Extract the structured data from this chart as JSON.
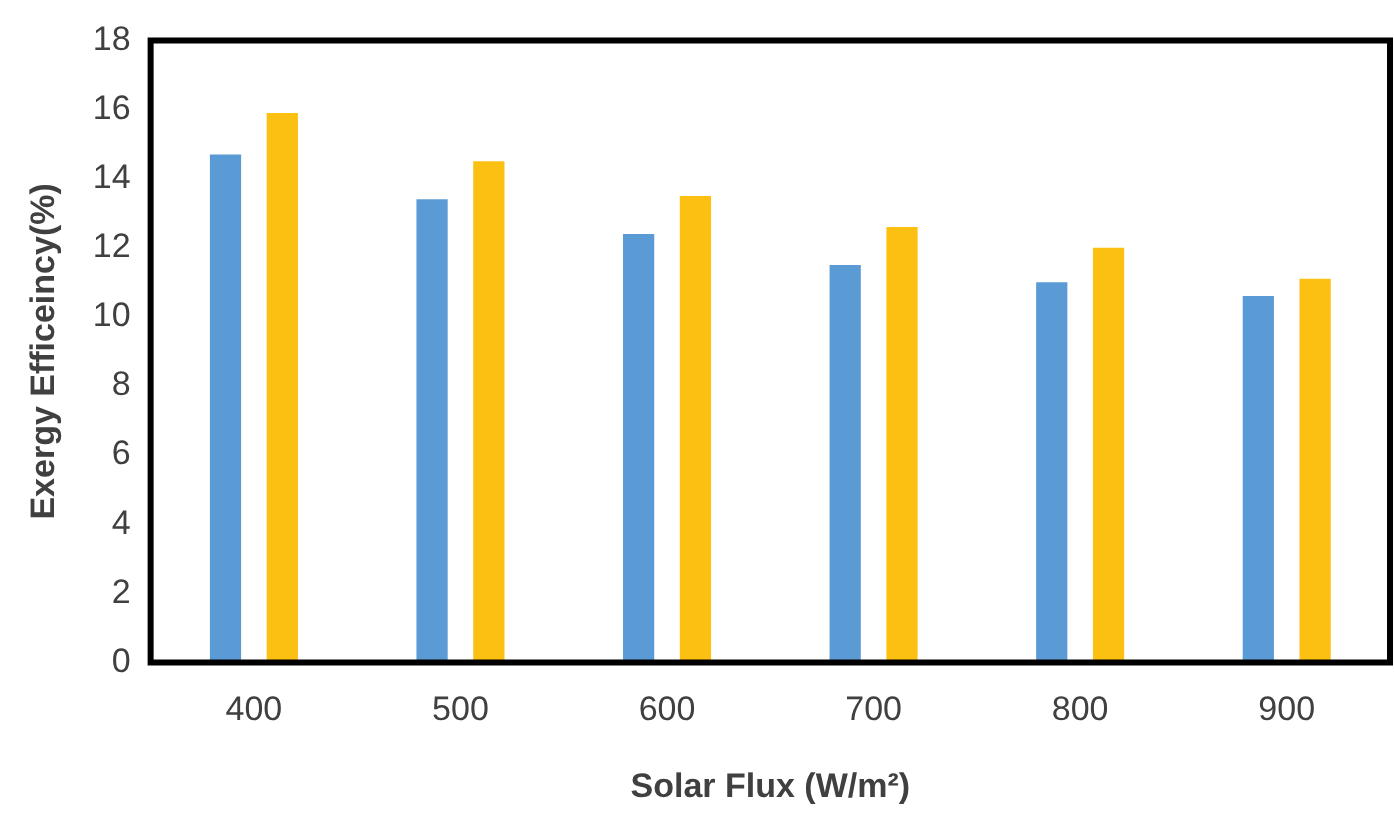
{
  "chart_data": {
    "type": "bar",
    "xlabel": "Solar Flux (W/m²)",
    "ylabel": "Exergy Efficeincy(%)",
    "categories": [
      "400",
      "500",
      "600",
      "700",
      "800",
      "900"
    ],
    "series": [
      {
        "color": "#5b9bd5",
        "values": [
          14.7,
          13.4,
          12.4,
          11.5,
          11.0,
          10.6
        ]
      },
      {
        "color": "#fbc012",
        "values": [
          15.9,
          14.5,
          13.5,
          12.6,
          12.0,
          11.1
        ]
      }
    ],
    "ylim": [
      0,
      18
    ],
    "yticks": [
      0,
      2,
      4,
      6,
      8,
      10,
      12,
      14,
      16,
      18
    ],
    "grid": false,
    "legend": false
  }
}
